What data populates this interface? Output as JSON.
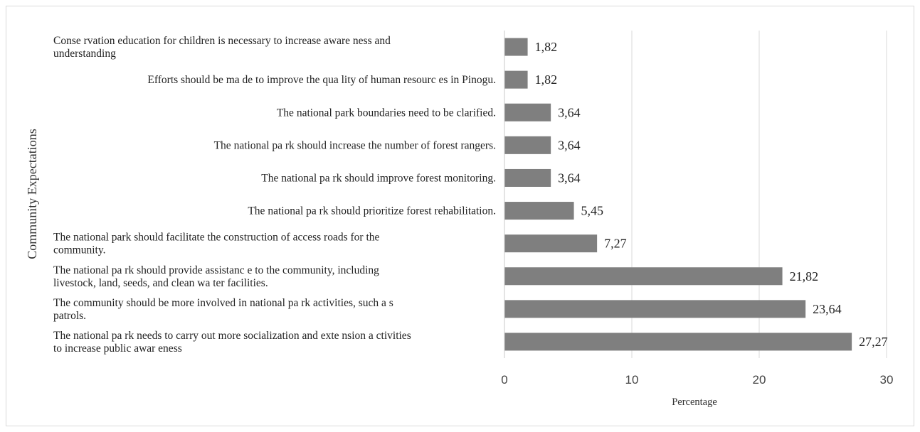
{
  "chart_data": {
    "type": "bar",
    "orientation": "horizontal",
    "categories": [
      [
        "Conse rvation education for children is necessary to increase aware ness and",
        "understanding"
      ],
      [
        "Efforts should be ma de to improve the qua lity of human resourc es in Pinogu."
      ],
      [
        "The national park boundaries need to be clarified."
      ],
      [
        "The national pa rk should increase the number of forest rangers."
      ],
      [
        "The national pa rk should improve forest monitoring."
      ],
      [
        "The national pa rk should prioritize forest rehabilitation."
      ],
      [
        "The national park should facilitate the construction of access roads for the",
        "community."
      ],
      [
        "The national pa rk should provide assistanc e to the community, including",
        "livestock, land, seeds, and clean wa ter facilities."
      ],
      [
        "The community should be more involved in national pa rk activities, such a s",
        "patrols."
      ],
      [
        "The national pa rk needs to carry out more socialization and exte nsion a ctivities",
        "to increase public awar eness"
      ]
    ],
    "values": [
      1.82,
      1.82,
      3.64,
      3.64,
      3.64,
      5.45,
      7.27,
      21.82,
      23.64,
      27.27
    ],
    "value_labels": [
      "1,82",
      "1,82",
      "3,64",
      "3,64",
      "3,64",
      "5,45",
      "7,27",
      "21,82",
      "23,64",
      "27,27"
    ],
    "xlabel": "Percentage",
    "ylabel": "Community Expectations",
    "xlim": [
      0,
      30
    ],
    "xticks": [
      0,
      10,
      20,
      30
    ],
    "grid": "vertical",
    "bar_color": "#7f7f7f"
  }
}
